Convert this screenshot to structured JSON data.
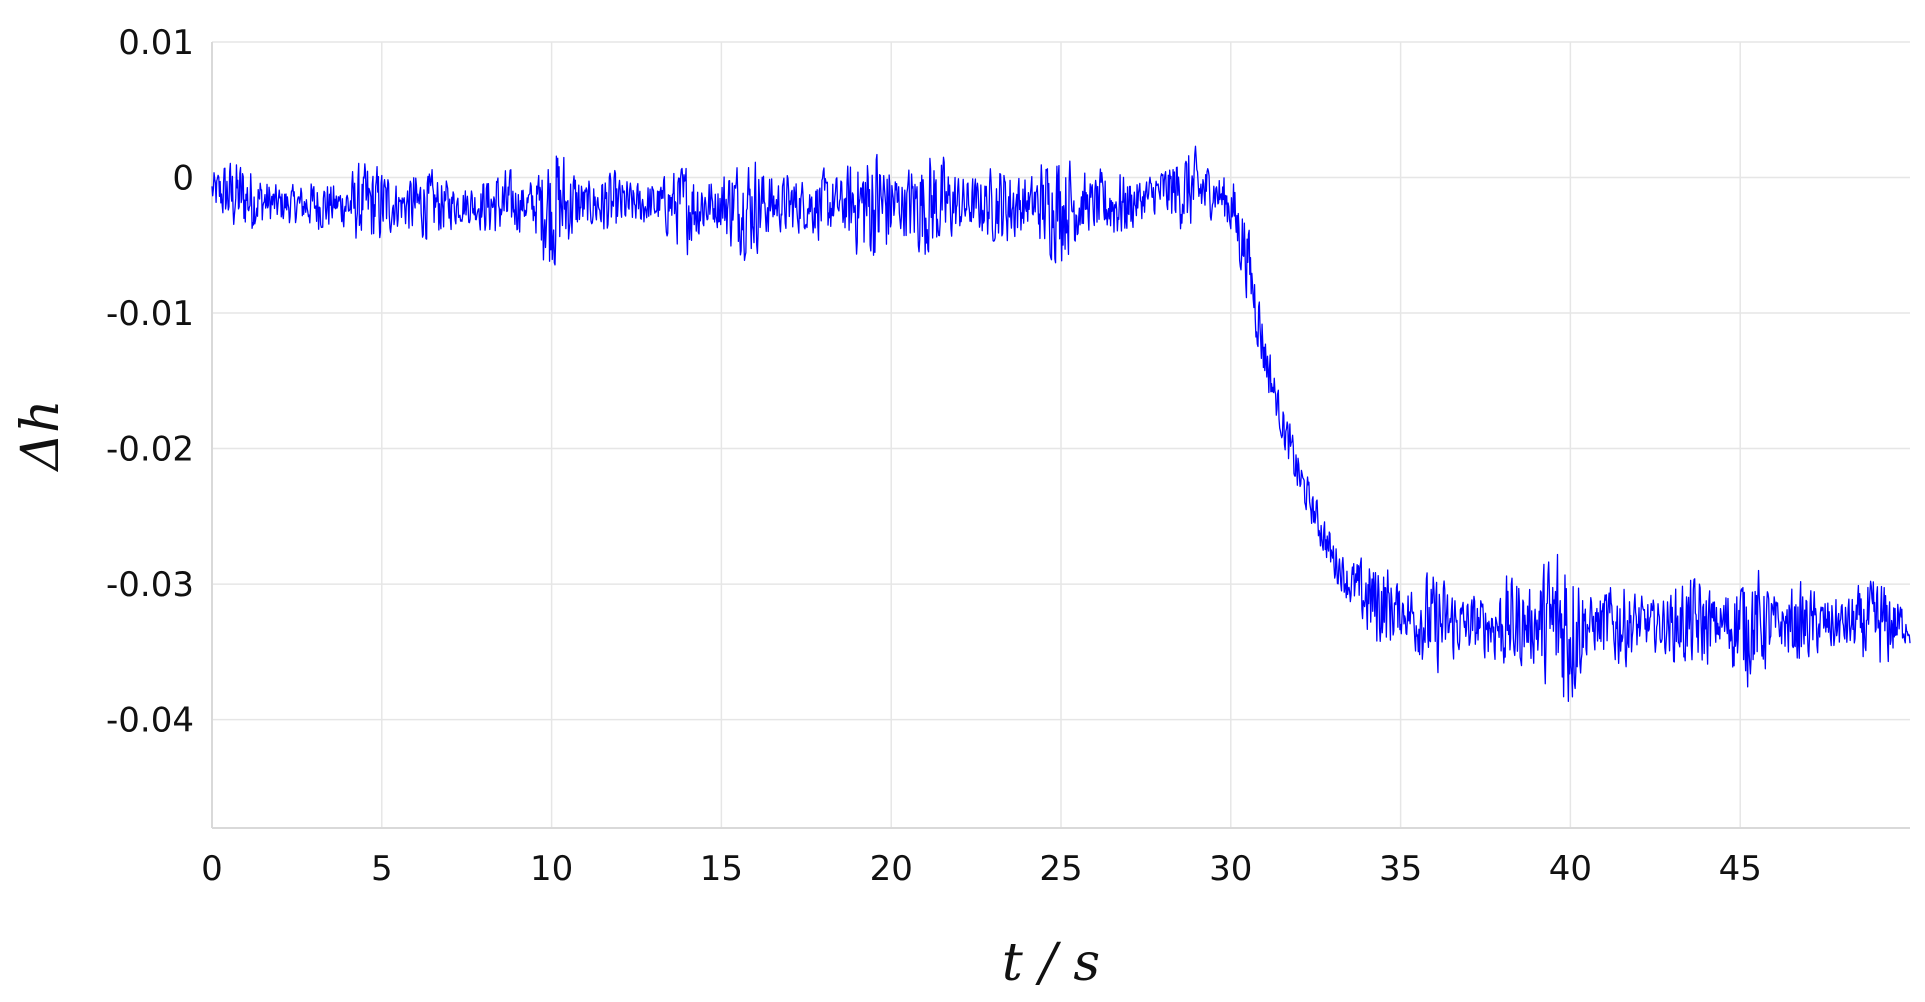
{
  "chart_data": {
    "type": "line",
    "xlabel": "t / s",
    "ylabel": "Δh",
    "xlim": [
      0,
      50
    ],
    "ylim": [
      -0.048,
      0.01
    ],
    "x_ticks": [
      0,
      5,
      10,
      15,
      20,
      25,
      30,
      35,
      40,
      45
    ],
    "x_tick_labels": [
      "0",
      "5",
      "10",
      "15",
      "20",
      "25",
      "30",
      "35",
      "40",
      "45"
    ],
    "y_ticks": [
      0.01,
      0,
      -0.01,
      -0.02,
      -0.03,
      -0.04
    ],
    "y_tick_labels": [
      "0.01",
      "0",
      "-0.01",
      "-0.02",
      "-0.03",
      "-0.04"
    ],
    "grid": true,
    "legend": "none",
    "series": [
      {
        "color": "#0000ff",
        "sample_step": 0.02,
        "x": [
          0,
          2,
          4,
          6,
          8,
          9.5,
          10,
          12,
          14,
          15.5,
          16,
          18,
          20,
          22,
          23,
          25,
          27,
          28,
          29.5,
          30,
          30.5,
          31,
          31.5,
          32,
          32.5,
          33,
          33.5,
          34,
          35,
          36,
          37,
          38,
          39,
          39.7,
          40,
          42,
          44,
          46,
          47,
          48,
          49,
          50
        ],
        "y": [
          -0.001,
          -0.002,
          -0.002,
          -0.002,
          -0.002,
          -0.002,
          -0.002,
          -0.002,
          -0.002,
          -0.002,
          -0.002,
          -0.002,
          -0.002,
          -0.002,
          -0.002,
          -0.002,
          -0.002,
          -0.001,
          -0.001,
          -0.002,
          -0.006,
          -0.013,
          -0.018,
          -0.022,
          -0.025,
          -0.028,
          -0.03,
          -0.031,
          -0.032,
          -0.033,
          -0.033,
          -0.033,
          -0.033,
          -0.033,
          -0.033,
          -0.033,
          -0.033,
          -0.033,
          -0.033,
          -0.033,
          -0.033,
          -0.033
        ],
        "noise_amplitude_x": [
          0,
          9.5,
          10,
          10.5,
          15.5,
          16,
          22,
          23,
          28,
          29,
          30,
          33,
          35,
          39.5,
          40,
          40.5,
          46,
          47,
          50
        ],
        "noise_amplitude": [
          0.0025,
          0.0028,
          0.0045,
          0.003,
          0.003,
          0.0035,
          0.004,
          0.0035,
          0.003,
          0.003,
          0.0025,
          0.0025,
          0.003,
          0.005,
          0.006,
          0.0035,
          0.0035,
          0.004,
          0.0025
        ]
      }
    ]
  }
}
